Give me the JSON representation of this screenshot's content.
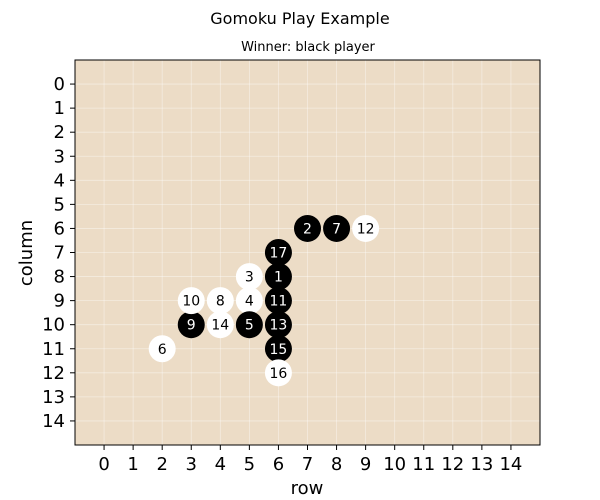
{
  "chart_data": {
    "type": "scatter",
    "title": "Gomoku Play Example",
    "subtitle": "Winner: black player",
    "xlabel": "row",
    "ylabel": "column",
    "x_ticks": [
      "0",
      "1",
      "2",
      "3",
      "4",
      "5",
      "6",
      "7",
      "8",
      "9",
      "10",
      "11",
      "12",
      "13",
      "14"
    ],
    "y_ticks": [
      "0",
      "1",
      "2",
      "3",
      "4",
      "5",
      "6",
      "7",
      "8",
      "9",
      "10",
      "11",
      "12",
      "13",
      "14"
    ],
    "xlim": [
      -1,
      15
    ],
    "ylim": [
      -1,
      15
    ],
    "y_inverted": true,
    "grid": true,
    "board_color": "#ecdcc6",
    "series": [
      {
        "color": "#000000",
        "label_color": "#ffffff",
        "points": [
          {
            "move": "1",
            "x": 6,
            "y": 8
          },
          {
            "move": "2",
            "x": 7,
            "y": 6
          },
          {
            "move": "5",
            "x": 5,
            "y": 10
          },
          {
            "move": "7",
            "x": 8,
            "y": 6
          },
          {
            "move": "9",
            "x": 3,
            "y": 10
          },
          {
            "move": "11",
            "x": 6,
            "y": 9
          },
          {
            "move": "13",
            "x": 6,
            "y": 10
          },
          {
            "move": "15",
            "x": 6,
            "y": 11
          },
          {
            "move": "17",
            "x": 6,
            "y": 7
          }
        ]
      },
      {
        "color": "#ffffff",
        "label_color": "#000000",
        "points": [
          {
            "move": "3",
            "x": 5,
            "y": 8
          },
          {
            "move": "4",
            "x": 5,
            "y": 9
          },
          {
            "move": "6",
            "x": 2,
            "y": 11
          },
          {
            "move": "8",
            "x": 4,
            "y": 9
          },
          {
            "move": "10",
            "x": 3,
            "y": 9
          },
          {
            "move": "12",
            "x": 9,
            "y": 6
          },
          {
            "move": "14",
            "x": 4,
            "y": 10
          },
          {
            "move": "16",
            "x": 6,
            "y": 12
          }
        ]
      }
    ]
  }
}
